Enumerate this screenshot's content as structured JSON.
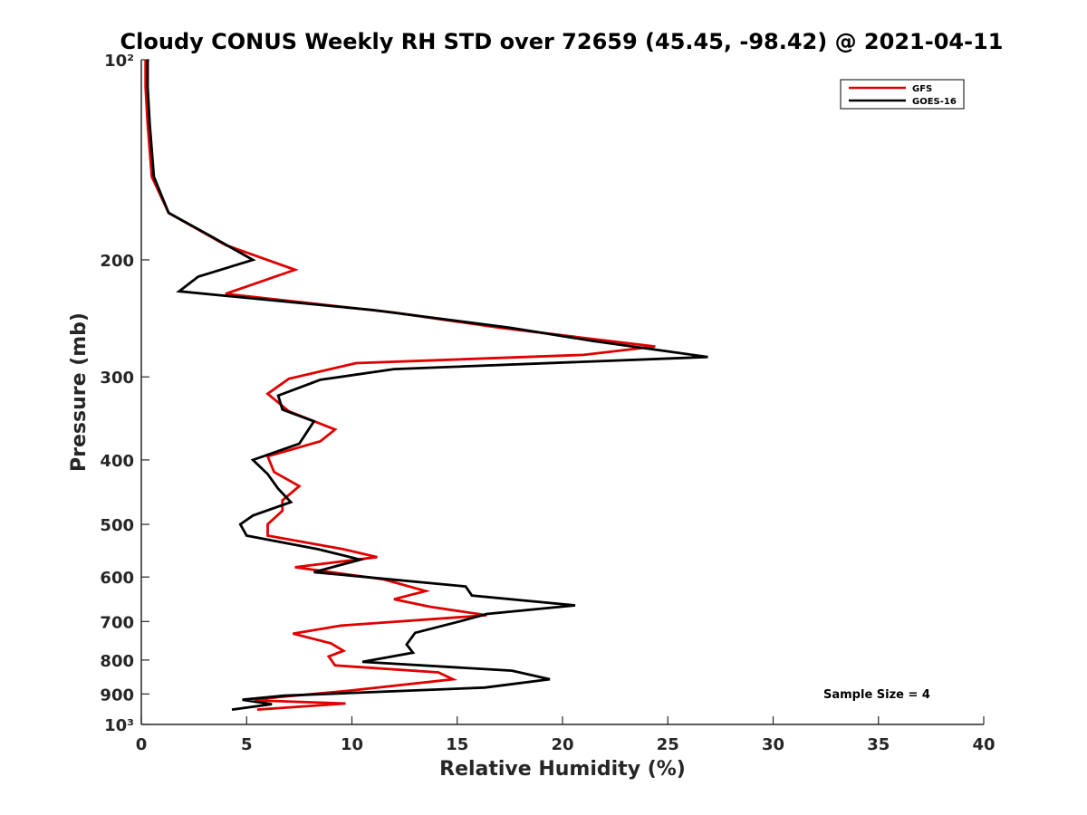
{
  "chart_data": {
    "type": "line",
    "title": "Cloudy CONUS Weekly RH STD over 72659 (45.45, -98.42) @ 2021-04-11",
    "xlabel": "Relative Humidity (%)",
    "ylabel": "Pressure (mb)",
    "xlim": [
      0,
      40
    ],
    "ylim": [
      100,
      1000
    ],
    "y_scale": "log",
    "y_reversed": true,
    "xticks": [
      0,
      5,
      10,
      15,
      20,
      25,
      30,
      35,
      40
    ],
    "xtick_labels": [
      "0",
      "5",
      "10",
      "15",
      "20",
      "25",
      "30",
      "35",
      "40"
    ],
    "yticks": [
      100,
      200,
      300,
      400,
      500,
      600,
      700,
      800,
      900,
      1000
    ],
    "ytick_labels": [
      "10²",
      "200",
      "300",
      "400",
      "500",
      "600",
      "700",
      "800",
      "900",
      "10³"
    ],
    "grid": false,
    "legend_position": "top-right",
    "annotation": "Sample Size = 4",
    "series": [
      {
        "name": "GFS",
        "color": "#e00000",
        "points": [
          [
            0.2,
            100
          ],
          [
            0.2,
            110
          ],
          [
            0.3,
            125
          ],
          [
            0.5,
            150
          ],
          [
            1.3,
            170
          ],
          [
            4.0,
            190
          ],
          [
            7.3,
            207
          ],
          [
            4.0,
            225
          ],
          [
            12.0,
            240
          ],
          [
            17.0,
            253
          ],
          [
            24.4,
            270
          ],
          [
            21.0,
            278
          ],
          [
            10.2,
            286
          ],
          [
            7.0,
            302
          ],
          [
            6.0,
            318
          ],
          [
            7.0,
            338
          ],
          [
            9.2,
            360
          ],
          [
            8.5,
            375
          ],
          [
            6.0,
            395
          ],
          [
            6.3,
            417
          ],
          [
            7.5,
            438
          ],
          [
            6.7,
            460
          ],
          [
            6.7,
            477
          ],
          [
            6.0,
            500
          ],
          [
            6.0,
            520
          ],
          [
            9.6,
            545
          ],
          [
            11.2,
            560
          ],
          [
            7.3,
            580
          ],
          [
            11.5,
            605
          ],
          [
            13.5,
            630
          ],
          [
            12.0,
            648
          ],
          [
            13.7,
            665
          ],
          [
            16.4,
            685
          ],
          [
            9.5,
            710
          ],
          [
            7.2,
            730
          ],
          [
            9.0,
            755
          ],
          [
            9.6,
            775
          ],
          [
            8.9,
            790
          ],
          [
            9.2,
            815
          ],
          [
            14.1,
            835
          ],
          [
            14.8,
            855
          ],
          [
            9.8,
            890
          ],
          [
            6.5,
            910
          ],
          [
            5.4,
            920
          ],
          [
            9.7,
            930
          ],
          [
            5.5,
            950
          ]
        ]
      },
      {
        "name": "GOES-16",
        "color": "#000000",
        "points": [
          [
            0.3,
            100
          ],
          [
            0.3,
            110
          ],
          [
            0.4,
            125
          ],
          [
            0.6,
            150
          ],
          [
            1.3,
            170
          ],
          [
            3.4,
            185
          ],
          [
            5.3,
            200
          ],
          [
            2.7,
            212
          ],
          [
            1.8,
            223
          ],
          [
            11.0,
            238
          ],
          [
            17.5,
            253
          ],
          [
            21.5,
            265
          ],
          [
            26.9,
            280
          ],
          [
            12.0,
            292
          ],
          [
            8.5,
            303
          ],
          [
            6.5,
            320
          ],
          [
            6.7,
            336
          ],
          [
            8.2,
            350
          ],
          [
            7.5,
            378
          ],
          [
            5.3,
            400
          ],
          [
            6.0,
            420
          ],
          [
            6.5,
            442
          ],
          [
            7.1,
            463
          ],
          [
            5.3,
            485
          ],
          [
            4.7,
            500
          ],
          [
            5.0,
            520
          ],
          [
            8.4,
            545
          ],
          [
            10.4,
            565
          ],
          [
            8.2,
            590
          ],
          [
            15.4,
            620
          ],
          [
            15.7,
            640
          ],
          [
            20.6,
            662
          ],
          [
            16.4,
            682
          ],
          [
            15.1,
            700
          ],
          [
            13.0,
            728
          ],
          [
            12.6,
            758
          ],
          [
            12.9,
            780
          ],
          [
            10.5,
            805
          ],
          [
            17.6,
            830
          ],
          [
            19.4,
            855
          ],
          [
            16.3,
            880
          ],
          [
            6.8,
            905
          ],
          [
            4.8,
            918
          ],
          [
            6.2,
            932
          ],
          [
            4.3,
            950
          ]
        ]
      }
    ]
  }
}
